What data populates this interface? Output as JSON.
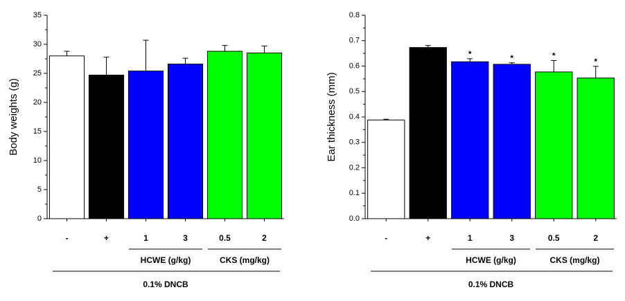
{
  "chart_data": [
    {
      "type": "bar",
      "y_label": "Body weights (g)",
      "categories": [
        "-",
        "+",
        "1",
        "3",
        "0.5",
        "2"
      ],
      "values": [
        28.0,
        24.7,
        25.4,
        26.6,
        28.8,
        28.5
      ],
      "errors": [
        0.8,
        3.1,
        5.3,
        1.0,
        1.0,
        1.2
      ],
      "colors": [
        "#ffffff",
        "#000000",
        "#0000ff",
        "#0000ff",
        "#00ff00",
        "#00ff00"
      ],
      "group_labels": [
        "HCWE (g/kg)",
        "CKS (mg/kg)"
      ],
      "footer_label": "0.1% DNCB",
      "ylim": [
        0,
        35
      ],
      "yticks": [
        0,
        5,
        10,
        15,
        20,
        25,
        30,
        35
      ]
    },
    {
      "type": "bar",
      "y_label": "Ear thickness (mm)",
      "categories": [
        "-",
        "+",
        "1",
        "3",
        "0.5",
        "2"
      ],
      "values": [
        0.388,
        0.673,
        0.617,
        0.607,
        0.577,
        0.553
      ],
      "errors": [
        0.003,
        0.008,
        0.012,
        0.006,
        0.045,
        0.046
      ],
      "colors": [
        "#ffffff",
        "#000000",
        "#0000ff",
        "#0000ff",
        "#00ff00",
        "#00ff00"
      ],
      "markers": [
        null,
        null,
        "*",
        "*",
        "*",
        "*"
      ],
      "group_labels": [
        "HCWE (g/kg)",
        "CKS (mg/kg)"
      ],
      "footer_label": "0.1% DNCB",
      "ylim": [
        0,
        0.8
      ],
      "yticks": [
        {
          "value": 0,
          "label": "0.0"
        },
        0.1,
        0.2,
        0.3,
        0.4,
        0.5,
        0.6,
        0.7,
        0.8
      ]
    }
  ]
}
